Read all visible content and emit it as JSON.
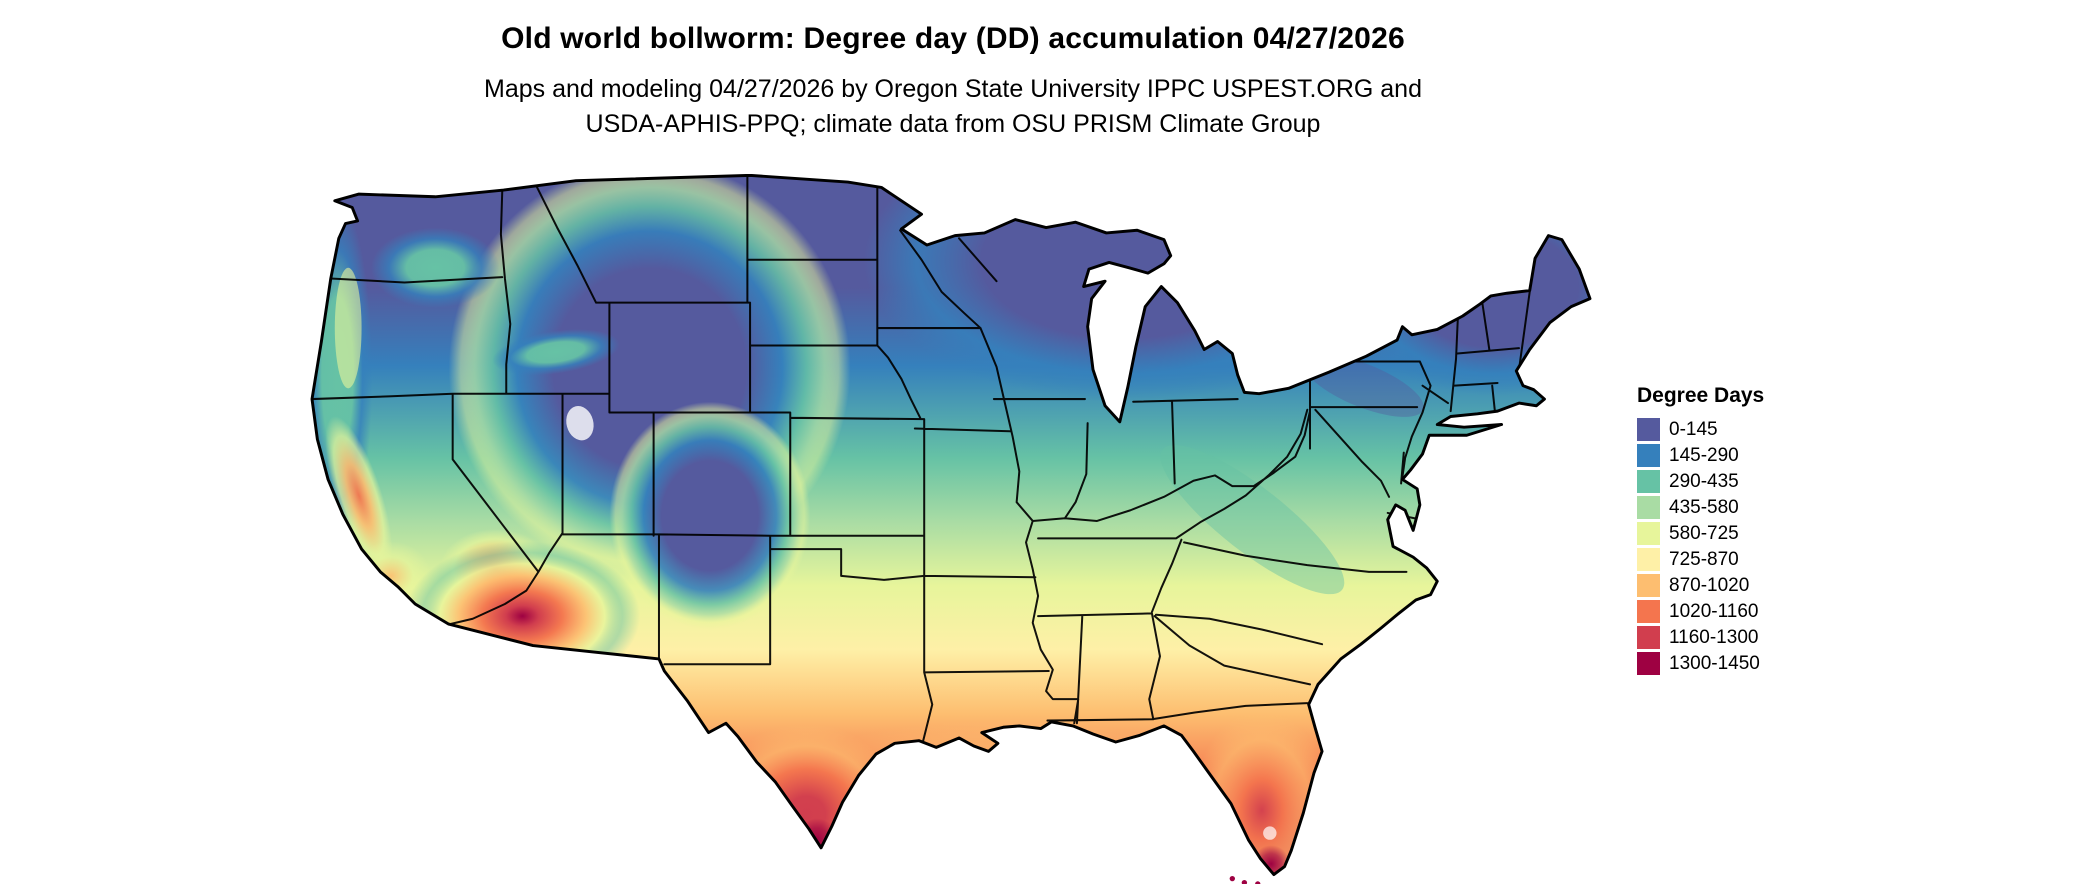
{
  "header": {
    "title": "Old world bollworm: Degree day (DD) accumulation 04/27/2026",
    "subtitle_line1": "Maps and modeling 04/27/2026 by Oregon State University IPPC USPEST.ORG and",
    "subtitle_line2": "USDA-APHIS-PPQ; climate data from OSU PRISM Climate Group"
  },
  "legend": {
    "title": "Degree Days",
    "entries": [
      {
        "label": "0-145",
        "color": "#555A9E"
      },
      {
        "label": "145-290",
        "color": "#3580BC"
      },
      {
        "label": "290-435",
        "color": "#66C2A5"
      },
      {
        "label": "435-580",
        "color": "#A9DCA4"
      },
      {
        "label": "580-725",
        "color": "#E7F59B"
      },
      {
        "label": "725-870",
        "color": "#FEF0A7"
      },
      {
        "label": "870-1020",
        "color": "#FDBE70"
      },
      {
        "label": "1020-1160",
        "color": "#F4754E"
      },
      {
        "label": "1160-1300",
        "color": "#D13E4E"
      },
      {
        "label": "1300-1450",
        "color": "#9E0142"
      }
    ]
  }
}
